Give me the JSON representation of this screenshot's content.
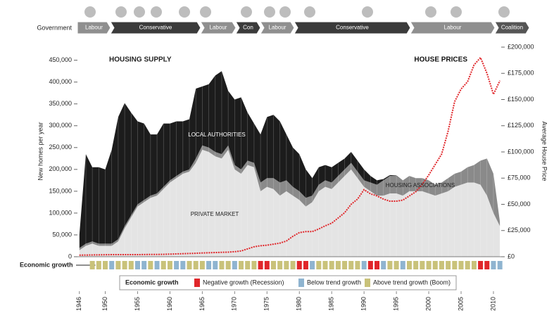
{
  "chart_data": {
    "type": "stacked-area",
    "government": {
      "label": "Government",
      "periods": [
        "Labour",
        "Conservative",
        "Labour",
        "Con",
        "Labour",
        "Conservative",
        "Labour",
        "Coalition"
      ]
    },
    "annotations": [
      "HOUSING SUPPLY"
    ],
    "y_label": "New homes per year",
    "y2_label": "Average House Price",
    "x": [
      1946,
      1947,
      1948,
      1949,
      1950,
      1951,
      1952,
      1953,
      1954,
      1955,
      1956,
      1957,
      1958,
      1959,
      1960,
      1961,
      1962,
      1963,
      1964,
      1965,
      1966,
      1967,
      1968,
      1969,
      1970,
      1971,
      1972,
      1973,
      1974,
      1975,
      1976,
      1977,
      1978,
      1979,
      1980,
      1981,
      1982,
      1983,
      1984,
      1985,
      1986,
      1987,
      1988,
      1989,
      1990,
      1991,
      1992,
      1993,
      1994,
      1995,
      1996,
      1997,
      1998,
      1999,
      2000,
      2001,
      2002,
      2003,
      2004,
      2005,
      2006,
      2007,
      2008,
      2009,
      2010,
      2011
    ],
    "xlim": [
      1945.7,
      2011.2
    ],
    "xticks": [
      1946,
      1950,
      1955,
      1960,
      1965,
      1970,
      1975,
      1980,
      1985,
      1990,
      1995,
      2000,
      2005,
      2010
    ],
    "ylim": [
      0,
      480000
    ],
    "yticks": [
      0,
      {
        "value": 50000,
        "label": "50,000"
      },
      {
        "value": 100000,
        "label": "100,000"
      },
      {
        "value": 150000,
        "label": "150,000"
      },
      {
        "value": 200000,
        "label": "200,000"
      },
      {
        "value": 250000,
        "label": "250,000"
      },
      {
        "value": 300000,
        "label": "300,000"
      },
      {
        "value": 350000,
        "label": "350,000"
      },
      {
        "value": 400000,
        "label": "400,000"
      },
      {
        "value": 450000,
        "label": "450,000"
      }
    ],
    "y2lim": [
      0,
      200000
    ],
    "y2ticks": [
      {
        "value": 0,
        "label": "£0"
      },
      {
        "value": 25000,
        "label": "£25,000"
      },
      {
        "value": 50000,
        "label": "£50,000"
      },
      {
        "value": 75000,
        "label": "£75,000"
      },
      {
        "value": 100000,
        "label": "£100,000"
      },
      {
        "value": 125000,
        "label": "£125,000"
      },
      {
        "value": 150000,
        "label": "£150,000"
      },
      {
        "value": 175000,
        "label": "£175,000"
      },
      {
        "value": 200000,
        "label": "£200,000"
      }
    ],
    "grid": false,
    "series": [
      {
        "name": "PRIVATE MARKET",
        "color": "#e4e4e4",
        "values": [
          15000,
          25000,
          30000,
          25000,
          25000,
          25000,
          35000,
          65000,
          90000,
          115000,
          125000,
          135000,
          140000,
          155000,
          170000,
          180000,
          190000,
          195000,
          215000,
          245000,
          240000,
          230000,
          225000,
          245000,
          200000,
          190000,
          210000,
          205000,
          150000,
          160000,
          155000,
          140000,
          150000,
          140000,
          130000,
          115000,
          125000,
          150000,
          160000,
          155000,
          170000,
          185000,
          200000,
          180000,
          160000,
          150000,
          140000,
          140000,
          145000,
          145000,
          140000,
          150000,
          150000,
          150000,
          145000,
          140000,
          145000,
          150000,
          160000,
          165000,
          170000,
          170000,
          165000,
          140000,
          100000,
          70000
        ]
      },
      {
        "name": "HOUSING ASSOCIATIONS",
        "color": "#8a8a8a",
        "values": [
          5000,
          5000,
          5000,
          5000,
          5000,
          5000,
          5000,
          5000,
          5000,
          5000,
          5000,
          5000,
          5000,
          5000,
          5000,
          5000,
          5000,
          5000,
          10000,
          10000,
          10000,
          10000,
          10000,
          10000,
          10000,
          10000,
          10000,
          10000,
          20000,
          20000,
          25000,
          30000,
          25000,
          20000,
          20000,
          20000,
          15000,
          15000,
          15000,
          15000,
          15000,
          15000,
          15000,
          15000,
          15000,
          20000,
          25000,
          35000,
          40000,
          40000,
          35000,
          35000,
          30000,
          30000,
          30000,
          25000,
          25000,
          30000,
          30000,
          30000,
          35000,
          40000,
          55000,
          85000,
          90000,
          10000
        ]
      },
      {
        "name": "LOCAL AUTHORITIES",
        "color": "#1c1c1c",
        "values": [
          30000,
          205000,
          170000,
          175000,
          170000,
          215000,
          280000,
          282000,
          235000,
          190000,
          175000,
          140000,
          135000,
          145000,
          130000,
          125000,
          115000,
          115000,
          160000,
          135000,
          145000,
          175000,
          190000,
          125000,
          150000,
          165000,
          110000,
          90000,
          110000,
          140000,
          145000,
          140000,
          105000,
          90000,
          85000,
          65000,
          40000,
          40000,
          35000,
          35000,
          30000,
          25000,
          25000,
          25000,
          25000,
          15000,
          10000,
          3000,
          2000,
          1000,
          0,
          0,
          0,
          0,
          0,
          0,
          0,
          0,
          0,
          0,
          0,
          0,
          0,
          0,
          0,
          0
        ]
      },
      {
        "name": "HOUSE PRICES",
        "color": "#e0262a",
        "axis": "y2",
        "values": [
          1500,
          1600,
          1700,
          1800,
          1900,
          2000,
          2000,
          2000,
          2000,
          2000,
          2100,
          2200,
          2200,
          2300,
          2500,
          2700,
          2900,
          3100,
          3300,
          3600,
          3800,
          4000,
          4200,
          4400,
          4800,
          5500,
          7500,
          9500,
          10500,
          11000,
          12000,
          13000,
          15000,
          19500,
          23000,
          24000,
          24000,
          26500,
          29500,
          32000,
          37000,
          42000,
          50000,
          55000,
          64000,
          60000,
          58000,
          55000,
          53000,
          53000,
          54000,
          58000,
          62000,
          69000,
          78000,
          88000,
          98000,
          120000,
          148000,
          160000,
          167000,
          183000,
          190000,
          175000,
          155000,
          168000
        ]
      }
    ],
    "economic_growth": {
      "label": "Economic growth",
      "legend_title": "Economic growth",
      "categories": [
        {
          "name": "Negative growth (Recession)",
          "color": "#e0262a"
        },
        {
          "name": "Below trend growth",
          "color": "#8fb4d0"
        },
        {
          "name": "Above trend growth (Boom)",
          "color": "#c9c27a"
        }
      ],
      "values": [
        null,
        null,
        2,
        2,
        2,
        1,
        2,
        2,
        2,
        1,
        1,
        2,
        1,
        2,
        2,
        1,
        1,
        2,
        2,
        2,
        1,
        1,
        2,
        2,
        1,
        2,
        2,
        2,
        0,
        0,
        2,
        2,
        2,
        2,
        0,
        0,
        1,
        2,
        2,
        2,
        2,
        2,
        2,
        2,
        1,
        0,
        0,
        1,
        2,
        2,
        1,
        2,
        2,
        2,
        2,
        2,
        2,
        2,
        2,
        2,
        2,
        2,
        0,
        0,
        1,
        1
      ]
    }
  }
}
